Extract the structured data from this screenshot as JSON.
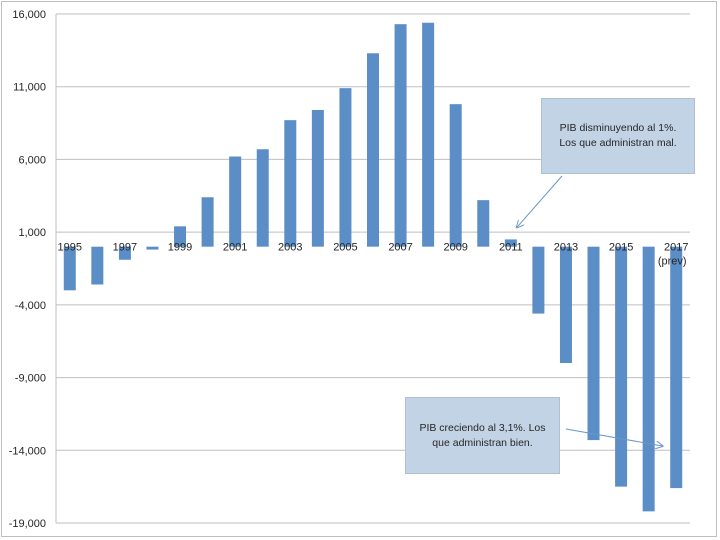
{
  "chart_data": {
    "type": "bar",
    "categories": [
      "1995",
      "1996",
      "1997",
      "1998",
      "1999",
      "2000",
      "2001",
      "2002",
      "2003",
      "2004",
      "2005",
      "2006",
      "2007",
      "2008",
      "2009",
      "2010",
      "2011",
      "2012",
      "2013",
      "2014",
      "2015",
      "2016",
      "2017"
    ],
    "values": [
      -3000,
      -2600,
      -900,
      -200,
      1400,
      3400,
      6200,
      6700,
      8700,
      9400,
      10900,
      13300,
      15300,
      15400,
      9800,
      3200,
      500,
      -4600,
      -8000,
      -13300,
      -16500,
      -18200,
      -16600
    ],
    "x_tick_labels": [
      "1995",
      "1997",
      "1999",
      "2001",
      "2003",
      "2005",
      "2007",
      "2009",
      "2011",
      "2013",
      "2015",
      "2017"
    ],
    "x_tick_label_extra": "(prev)",
    "y_ticks": [
      16000,
      11000,
      6000,
      1000,
      -4000,
      -9000,
      -14000,
      -19000
    ],
    "y_tick_labels": [
      "16,000",
      "11,000",
      "6,000",
      "1,000",
      "-4,000",
      "-9,000",
      "-14,000",
      "-19,000"
    ],
    "ylim": [
      -19000,
      16000
    ],
    "grid": true,
    "bar_color": "#5b8ec6",
    "annotations": [
      {
        "text": "PIB disminuyendo al 1%. Los que administran mal.",
        "points_to": "2011"
      },
      {
        "text": "PIB creciendo al 3,1%. Los que administran bien.",
        "points_to": "2016"
      }
    ]
  }
}
